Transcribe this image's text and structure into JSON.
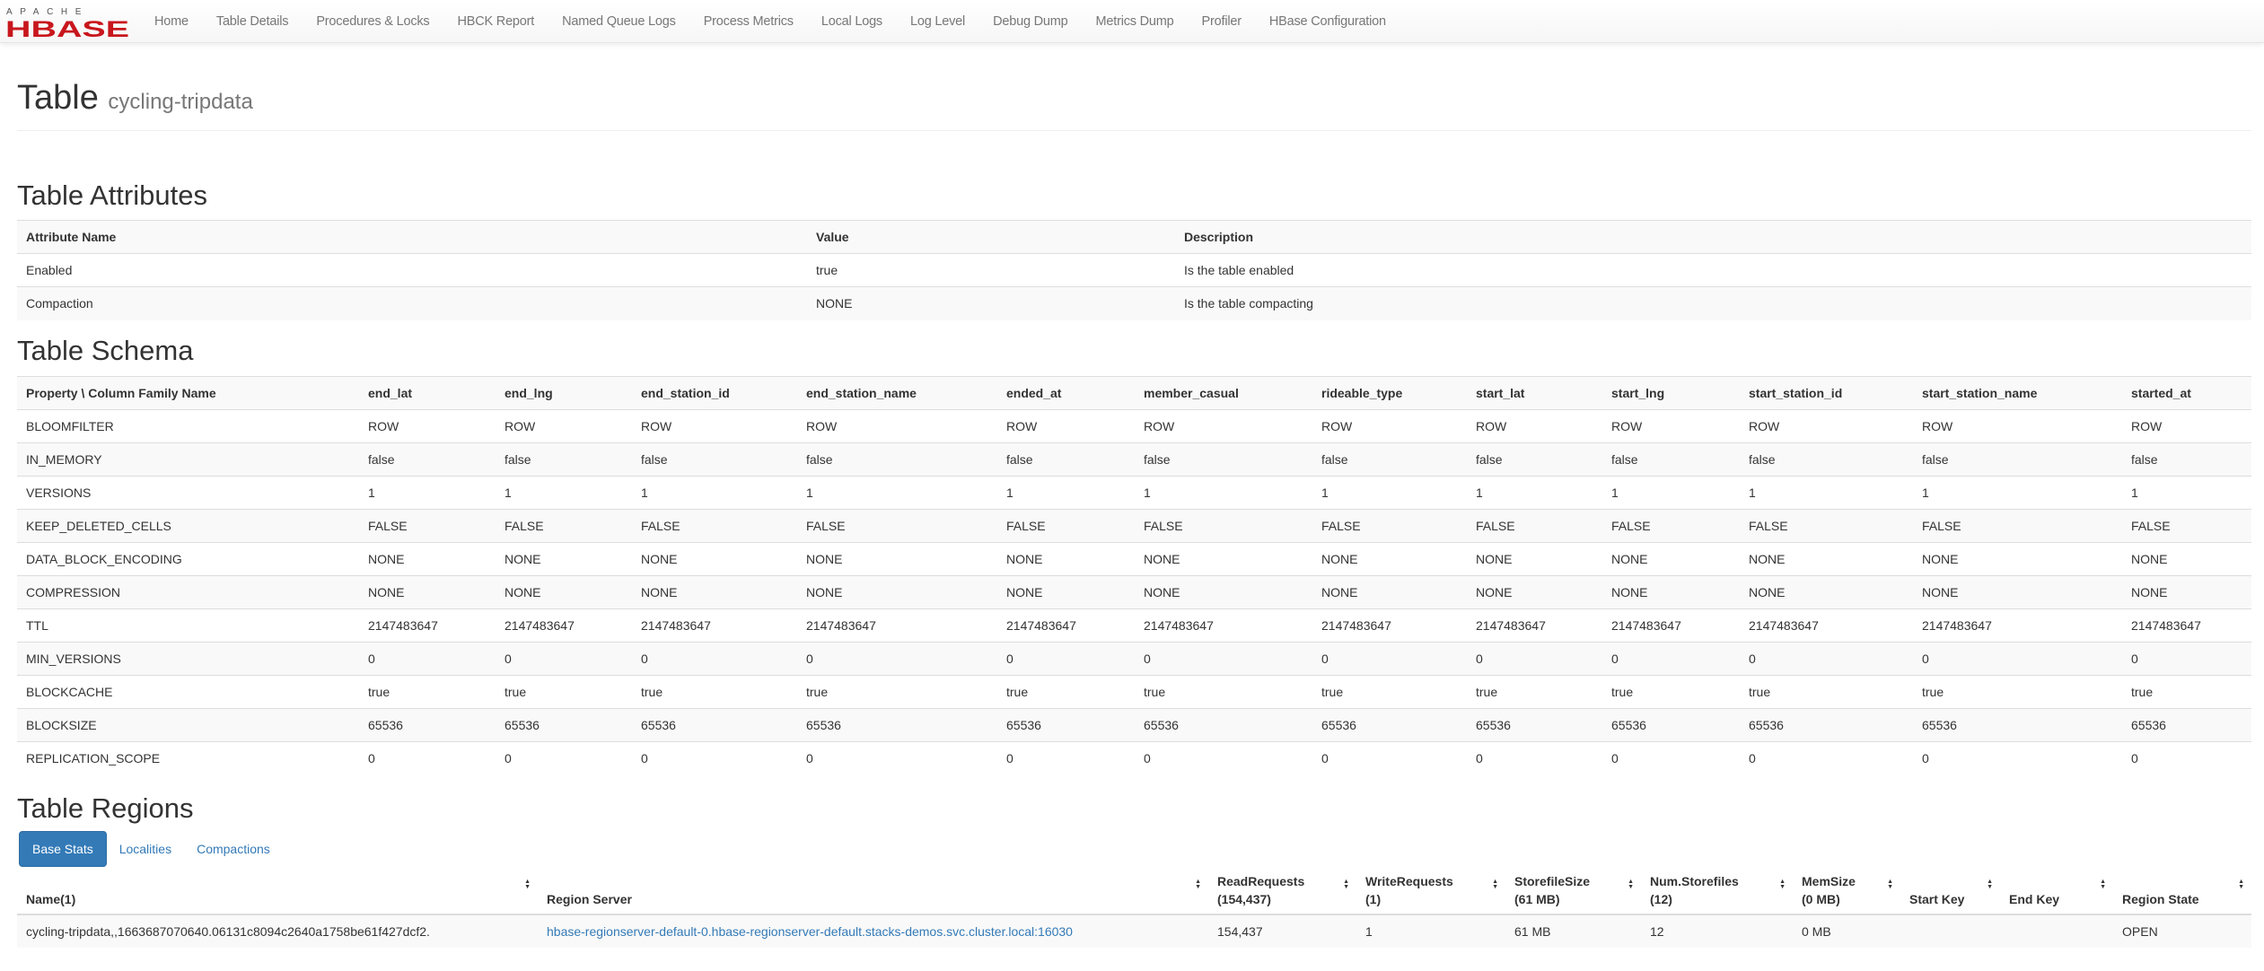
{
  "nav": {
    "logo_text": "APACHE HBASE",
    "items": [
      "Home",
      "Table Details",
      "Procedures & Locks",
      "HBCK Report",
      "Named Queue Logs",
      "Process Metrics",
      "Local Logs",
      "Log Level",
      "Debug Dump",
      "Metrics Dump",
      "Profiler",
      "HBase Configuration"
    ]
  },
  "title": {
    "label": "Table",
    "name": "cycling-tripdata"
  },
  "attributes": {
    "heading": "Table Attributes",
    "headers": [
      "Attribute Name",
      "Value",
      "Description"
    ],
    "rows": [
      [
        "Enabled",
        "true",
        "Is the table enabled"
      ],
      [
        "Compaction",
        "NONE",
        "Is the table compacting"
      ]
    ]
  },
  "schema": {
    "heading": "Table Schema",
    "headers": [
      "Property \\ Column Family Name",
      "end_lat",
      "end_lng",
      "end_station_id",
      "end_station_name",
      "ended_at",
      "member_casual",
      "rideable_type",
      "start_lat",
      "start_lng",
      "start_station_id",
      "start_station_name",
      "started_at"
    ],
    "rows": [
      [
        "BLOOMFILTER",
        "ROW"
      ],
      [
        "IN_MEMORY",
        "false"
      ],
      [
        "VERSIONS",
        "1"
      ],
      [
        "KEEP_DELETED_CELLS",
        "FALSE"
      ],
      [
        "DATA_BLOCK_ENCODING",
        "NONE"
      ],
      [
        "COMPRESSION",
        "NONE"
      ],
      [
        "TTL",
        "2147483647"
      ],
      [
        "MIN_VERSIONS",
        "0"
      ],
      [
        "BLOCKCACHE",
        "true"
      ],
      [
        "BLOCKSIZE",
        "65536"
      ],
      [
        "REPLICATION_SCOPE",
        "0"
      ]
    ]
  },
  "regions": {
    "heading": "Table Regions",
    "tabs": [
      "Base Stats",
      "Localities",
      "Compactions"
    ],
    "active_tab": "Base Stats",
    "headers": [
      [
        "Name(1)",
        ""
      ],
      [
        "Region Server",
        ""
      ],
      [
        "ReadRequests",
        "(154,437)"
      ],
      [
        "WriteRequests",
        "(1)"
      ],
      [
        "StorefileSize",
        "(61 MB)"
      ],
      [
        "Num.Storefiles",
        "(12)"
      ],
      [
        "MemSize",
        "(0 MB)"
      ],
      [
        "Start Key",
        ""
      ],
      [
        "End Key",
        ""
      ],
      [
        "Region State",
        ""
      ]
    ],
    "rows": [
      [
        "cycling-tripdata,,1663687070640.06131c8094c2640a1758be61f427dcf2.",
        "hbase-regionserver-default-0.hbase-regionserver-default.stacks-demos.svc.cluster.local:16030",
        "154,437",
        "1",
        "61 MB",
        "12",
        "0 MB",
        "",
        "",
        "OPEN"
      ]
    ]
  },
  "colors": {
    "accent": "#337ab7",
    "logo_red": "#c8161d"
  }
}
